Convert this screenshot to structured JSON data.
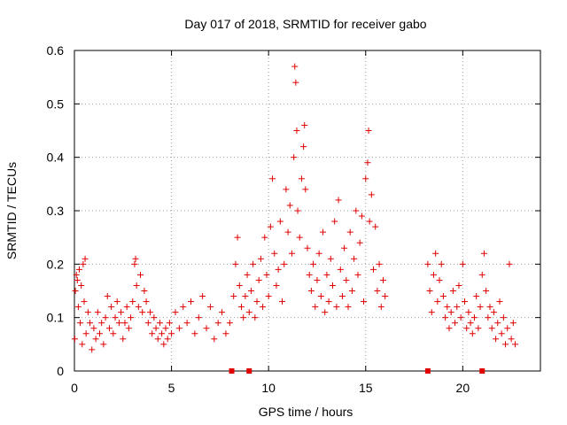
{
  "chart_data": {
    "type": "scatter",
    "title": "Day 017 of 2018, SRMTID for receiver gabo",
    "xlabel": "GPS time / hours",
    "ylabel": "SRMTID / TECUs",
    "xlim": [
      0,
      24
    ],
    "ylim": [
      0,
      0.6
    ],
    "xticks": [
      0,
      5,
      10,
      15,
      20
    ],
    "yticks": [
      0,
      0.1,
      0.2,
      0.3,
      0.4,
      0.5,
      0.6
    ],
    "xtick_labels": [
      "0",
      "5",
      "10",
      "15",
      "20"
    ],
    "ytick_labels": [
      "0",
      "0.1",
      "0.2",
      "0.3",
      "0.4",
      "0.5",
      "0.6"
    ],
    "grid": true,
    "marker": "+",
    "color": "#e00000",
    "baseline_markers_x": [
      8.1,
      9.0,
      18.2,
      21.0
    ],
    "series": [
      {
        "name": "SRMTID",
        "points": [
          [
            0.02,
            0.06
          ],
          [
            0.05,
            0.15
          ],
          [
            0.1,
            0.18
          ],
          [
            0.15,
            0.17
          ],
          [
            0.2,
            0.12
          ],
          [
            0.25,
            0.19
          ],
          [
            0.3,
            0.09
          ],
          [
            0.35,
            0.16
          ],
          [
            0.4,
            0.05
          ],
          [
            0.45,
            0.2
          ],
          [
            0.5,
            0.13
          ],
          [
            0.55,
            0.21
          ],
          [
            0.6,
            0.07
          ],
          [
            0.7,
            0.11
          ],
          [
            0.8,
            0.09
          ],
          [
            0.9,
            0.04
          ],
          [
            1.0,
            0.08
          ],
          [
            1.1,
            0.06
          ],
          [
            1.2,
            0.11
          ],
          [
            1.3,
            0.07
          ],
          [
            1.4,
            0.09
          ],
          [
            1.5,
            0.05
          ],
          [
            1.6,
            0.1
          ],
          [
            1.7,
            0.14
          ],
          [
            1.8,
            0.08
          ],
          [
            1.9,
            0.12
          ],
          [
            2.0,
            0.07
          ],
          [
            2.1,
            0.1
          ],
          [
            2.2,
            0.13
          ],
          [
            2.3,
            0.09
          ],
          [
            2.4,
            0.11
          ],
          [
            2.5,
            0.06
          ],
          [
            2.6,
            0.09
          ],
          [
            2.7,
            0.12
          ],
          [
            2.8,
            0.08
          ],
          [
            2.9,
            0.1
          ],
          [
            3.0,
            0.13
          ],
          [
            3.1,
            0.2
          ],
          [
            3.15,
            0.21
          ],
          [
            3.2,
            0.16
          ],
          [
            3.3,
            0.12
          ],
          [
            3.4,
            0.18
          ],
          [
            3.5,
            0.11
          ],
          [
            3.6,
            0.15
          ],
          [
            3.7,
            0.13
          ],
          [
            3.8,
            0.09
          ],
          [
            3.9,
            0.11
          ],
          [
            4.0,
            0.07
          ],
          [
            4.1,
            0.1
          ],
          [
            4.2,
            0.08
          ],
          [
            4.3,
            0.06
          ],
          [
            4.4,
            0.09
          ],
          [
            4.5,
            0.07
          ],
          [
            4.6,
            0.05
          ],
          [
            4.7,
            0.08
          ],
          [
            4.8,
            0.06
          ],
          [
            4.9,
            0.09
          ],
          [
            5.0,
            0.07
          ],
          [
            5.2,
            0.11
          ],
          [
            5.4,
            0.08
          ],
          [
            5.6,
            0.12
          ],
          [
            5.8,
            0.09
          ],
          [
            6.0,
            0.13
          ],
          [
            6.2,
            0.07
          ],
          [
            6.4,
            0.1
          ],
          [
            6.6,
            0.14
          ],
          [
            6.8,
            0.08
          ],
          [
            7.0,
            0.12
          ],
          [
            7.2,
            0.06
          ],
          [
            7.4,
            0.09
          ],
          [
            7.6,
            0.11
          ],
          [
            7.8,
            0.07
          ],
          [
            8.0,
            0.09
          ],
          [
            8.2,
            0.14
          ],
          [
            8.3,
            0.2
          ],
          [
            8.4,
            0.25
          ],
          [
            8.5,
            0.16
          ],
          [
            8.6,
            0.12
          ],
          [
            8.7,
            0.1
          ],
          [
            8.8,
            0.14
          ],
          [
            8.9,
            0.18
          ],
          [
            9.0,
            0.11
          ],
          [
            9.1,
            0.15
          ],
          [
            9.2,
            0.2
          ],
          [
            9.3,
            0.1
          ],
          [
            9.4,
            0.13
          ],
          [
            9.5,
            0.17
          ],
          [
            9.6,
            0.21
          ],
          [
            9.7,
            0.12
          ],
          [
            9.8,
            0.25
          ],
          [
            9.9,
            0.18
          ],
          [
            10.0,
            0.14
          ],
          [
            10.1,
            0.27
          ],
          [
            10.2,
            0.36
          ],
          [
            10.3,
            0.22
          ],
          [
            10.4,
            0.16
          ],
          [
            10.5,
            0.19
          ],
          [
            10.6,
            0.28
          ],
          [
            10.7,
            0.13
          ],
          [
            10.8,
            0.2
          ],
          [
            10.9,
            0.34
          ],
          [
            11.0,
            0.26
          ],
          [
            11.1,
            0.31
          ],
          [
            11.2,
            0.22
          ],
          [
            11.3,
            0.4
          ],
          [
            11.35,
            0.57
          ],
          [
            11.4,
            0.54
          ],
          [
            11.45,
            0.45
          ],
          [
            11.5,
            0.3
          ],
          [
            11.6,
            0.25
          ],
          [
            11.7,
            0.36
          ],
          [
            11.8,
            0.42
          ],
          [
            11.85,
            0.46
          ],
          [
            11.9,
            0.34
          ],
          [
            12.0,
            0.23
          ],
          [
            12.1,
            0.18
          ],
          [
            12.2,
            0.15
          ],
          [
            12.3,
            0.2
          ],
          [
            12.4,
            0.12
          ],
          [
            12.5,
            0.17
          ],
          [
            12.6,
            0.22
          ],
          [
            12.7,
            0.14
          ],
          [
            12.8,
            0.26
          ],
          [
            12.9,
            0.11
          ],
          [
            13.0,
            0.18
          ],
          [
            13.1,
            0.13
          ],
          [
            13.2,
            0.21
          ],
          [
            13.3,
            0.16
          ],
          [
            13.4,
            0.28
          ],
          [
            13.5,
            0.12
          ],
          [
            13.6,
            0.32
          ],
          [
            13.7,
            0.19
          ],
          [
            13.8,
            0.14
          ],
          [
            13.9,
            0.23
          ],
          [
            14.0,
            0.17
          ],
          [
            14.1,
            0.12
          ],
          [
            14.2,
            0.26
          ],
          [
            14.3,
            0.15
          ],
          [
            14.4,
            0.21
          ],
          [
            14.5,
            0.3
          ],
          [
            14.6,
            0.18
          ],
          [
            14.7,
            0.24
          ],
          [
            14.8,
            0.29
          ],
          [
            14.9,
            0.13
          ],
          [
            15.0,
            0.36
          ],
          [
            15.1,
            0.39
          ],
          [
            15.15,
            0.45
          ],
          [
            15.2,
            0.28
          ],
          [
            15.3,
            0.33
          ],
          [
            15.4,
            0.19
          ],
          [
            15.5,
            0.27
          ],
          [
            15.6,
            0.15
          ],
          [
            15.7,
            0.2
          ],
          [
            15.8,
            0.12
          ],
          [
            15.9,
            0.17
          ],
          [
            16.0,
            0.14
          ],
          [
            18.2,
            0.2
          ],
          [
            18.3,
            0.15
          ],
          [
            18.4,
            0.11
          ],
          [
            18.5,
            0.18
          ],
          [
            18.6,
            0.22
          ],
          [
            18.7,
            0.13
          ],
          [
            18.8,
            0.17
          ],
          [
            18.9,
            0.2
          ],
          [
            19.0,
            0.14
          ],
          [
            19.1,
            0.1
          ],
          [
            19.2,
            0.12
          ],
          [
            19.3,
            0.08
          ],
          [
            19.4,
            0.11
          ],
          [
            19.5,
            0.15
          ],
          [
            19.6,
            0.09
          ],
          [
            19.7,
            0.12
          ],
          [
            19.8,
            0.16
          ],
          [
            19.9,
            0.1
          ],
          [
            20.0,
            0.2
          ],
          [
            20.1,
            0.13
          ],
          [
            20.2,
            0.08
          ],
          [
            20.3,
            0.11
          ],
          [
            20.4,
            0.09
          ],
          [
            20.5,
            0.07
          ],
          [
            20.6,
            0.1
          ],
          [
            20.7,
            0.14
          ],
          [
            20.8,
            0.08
          ],
          [
            20.9,
            0.12
          ],
          [
            21.0,
            0.18
          ],
          [
            21.1,
            0.22
          ],
          [
            21.2,
            0.15
          ],
          [
            21.3,
            0.1
          ],
          [
            21.4,
            0.12
          ],
          [
            21.5,
            0.08
          ],
          [
            21.6,
            0.11
          ],
          [
            21.7,
            0.06
          ],
          [
            21.8,
            0.09
          ],
          [
            21.9,
            0.13
          ],
          [
            22.0,
            0.07
          ],
          [
            22.1,
            0.1
          ],
          [
            22.2,
            0.05
          ],
          [
            22.3,
            0.08
          ],
          [
            22.4,
            0.2
          ],
          [
            22.5,
            0.06
          ],
          [
            22.6,
            0.09
          ],
          [
            22.7,
            0.05
          ]
        ]
      }
    ]
  }
}
